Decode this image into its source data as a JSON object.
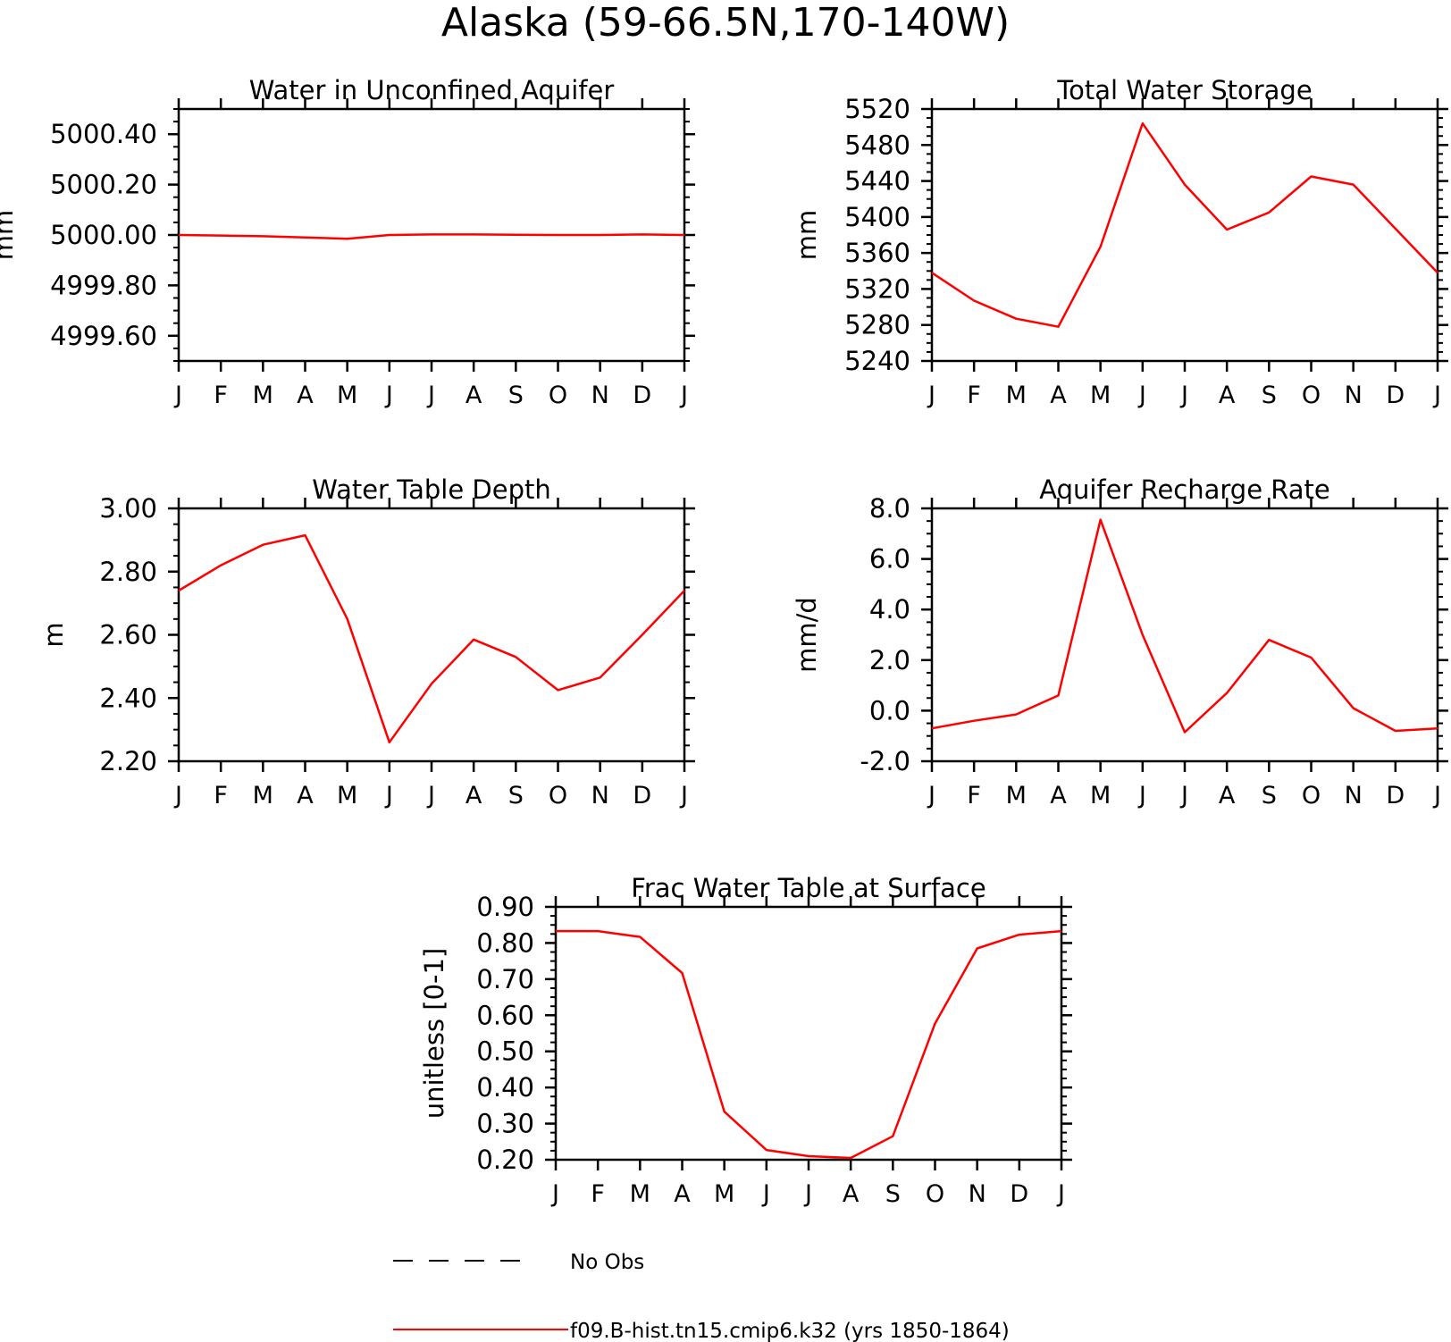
{
  "figure": {
    "title": "Alaska (59-66.5N,170-140W)"
  },
  "months": [
    "J",
    "F",
    "M",
    "A",
    "M",
    "J",
    "J",
    "A",
    "S",
    "O",
    "N",
    "D",
    "J"
  ],
  "colors": {
    "model": "#ff0000",
    "obs": "#000000",
    "axis": "#000000"
  },
  "legend": {
    "obs_label": "No Obs",
    "model_label": "f09.B-hist.tn15.cmip6.k32 (yrs 1850-1864)"
  },
  "chart_data": [
    {
      "type": "line",
      "title": "Water in Unconfined Aquifer",
      "xlabel": "",
      "ylabel": "mm",
      "ylim": [
        4999.5,
        5000.5
      ],
      "yticks": [
        {
          "value": 4999.6,
          "label": "4999.60"
        },
        {
          "value": 4999.8,
          "label": "4999.80"
        },
        {
          "value": 5000.0,
          "label": "5000.00"
        },
        {
          "value": 5000.2,
          "label": "5000.20"
        },
        {
          "value": 5000.4,
          "label": "5000.40"
        }
      ],
      "yminor": 0.05,
      "series": [
        {
          "name": "f09.B-hist.tn15.cmip6.k32 (yrs 1850-1864)",
          "values": [
            5000.0,
            4999.998,
            4999.995,
            4999.99,
            4999.985,
            5000.0,
            5000.002,
            5000.002,
            5000.001,
            5000.0,
            5000.0,
            5000.002,
            5000.0
          ]
        }
      ]
    },
    {
      "type": "line",
      "title": "Total Water Storage",
      "xlabel": "",
      "ylabel": "mm",
      "ylim": [
        5240,
        5520
      ],
      "yticks": [
        {
          "value": 5240,
          "label": "5240"
        },
        {
          "value": 5280,
          "label": "5280"
        },
        {
          "value": 5320,
          "label": "5320"
        },
        {
          "value": 5360,
          "label": "5360"
        },
        {
          "value": 5400,
          "label": "5400"
        },
        {
          "value": 5440,
          "label": "5440"
        },
        {
          "value": 5480,
          "label": "5480"
        },
        {
          "value": 5520,
          "label": "5520"
        }
      ],
      "yminor": 10,
      "series": [
        {
          "name": "f09.B-hist.tn15.cmip6.k32 (yrs 1850-1864)",
          "values": [
            5338,
            5307,
            5287,
            5278,
            5367,
            5504,
            5436,
            5386,
            5405,
            5445,
            5436,
            5387,
            5338
          ]
        }
      ]
    },
    {
      "type": "line",
      "title": "Water Table Depth",
      "xlabel": "",
      "ylabel": "m",
      "ylim": [
        2.2,
        3.0
      ],
      "yticks": [
        {
          "value": 2.2,
          "label": "2.20"
        },
        {
          "value": 2.4,
          "label": "2.40"
        },
        {
          "value": 2.6,
          "label": "2.60"
        },
        {
          "value": 2.8,
          "label": "2.80"
        },
        {
          "value": 3.0,
          "label": "3.00"
        }
      ],
      "yminor": 0.05,
      "series": [
        {
          "name": "f09.B-hist.tn15.cmip6.k32 (yrs 1850-1864)",
          "values": [
            2.74,
            2.82,
            2.885,
            2.915,
            2.65,
            2.26,
            2.445,
            2.585,
            2.53,
            2.425,
            2.465,
            2.6,
            2.74
          ]
        }
      ]
    },
    {
      "type": "line",
      "title": "Aquifer Recharge Rate",
      "xlabel": "",
      "ylabel": "mm/d",
      "ylim": [
        -2.0,
        8.0
      ],
      "yticks": [
        {
          "value": -2.0,
          "label": "-2.0"
        },
        {
          "value": 0.0,
          "label": "0.0"
        },
        {
          "value": 2.0,
          "label": "2.0"
        },
        {
          "value": 4.0,
          "label": "4.0"
        },
        {
          "value": 6.0,
          "label": "6.0"
        },
        {
          "value": 8.0,
          "label": "8.0"
        }
      ],
      "yminor": 0.5,
      "series": [
        {
          "name": "f09.B-hist.tn15.cmip6.k32 (yrs 1850-1864)",
          "values": [
            -0.7,
            -0.4,
            -0.15,
            0.6,
            7.55,
            3.0,
            -0.85,
            0.7,
            2.8,
            2.1,
            0.1,
            -0.8,
            -0.7
          ]
        }
      ]
    },
    {
      "type": "line",
      "title": "Frac Water Table at Surface",
      "xlabel": "",
      "ylabel": "unitless [0-1]",
      "ylim": [
        0.2,
        0.9
      ],
      "yticks": [
        {
          "value": 0.2,
          "label": "0.20"
        },
        {
          "value": 0.3,
          "label": "0.30"
        },
        {
          "value": 0.4,
          "label": "0.40"
        },
        {
          "value": 0.5,
          "label": "0.50"
        },
        {
          "value": 0.6,
          "label": "0.60"
        },
        {
          "value": 0.7,
          "label": "0.70"
        },
        {
          "value": 0.8,
          "label": "0.80"
        },
        {
          "value": 0.9,
          "label": "0.90"
        }
      ],
      "yminor": 0.025,
      "series": [
        {
          "name": "f09.B-hist.tn15.cmip6.k32 (yrs 1850-1864)",
          "values": [
            0.833,
            0.833,
            0.817,
            0.717,
            0.333,
            0.227,
            0.21,
            0.205,
            0.265,
            0.577,
            0.785,
            0.823,
            0.833
          ]
        }
      ]
    }
  ]
}
